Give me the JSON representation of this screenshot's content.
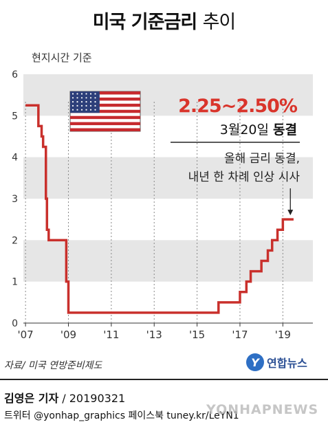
{
  "title_bold": "미국 기준금리",
  "title_thin": "추이",
  "subtitle": "현지시간 기준",
  "chart_data": {
    "type": "line",
    "title": "미국 기준금리 추이",
    "x_tick_labels": [
      "'07",
      "'09",
      "'11",
      "'13",
      "'15",
      "'17",
      "'19"
    ],
    "x_ticks": [
      2007,
      2009,
      2011,
      2013,
      2015,
      2017,
      2019
    ],
    "xlim": [
      2006.9,
      2020.4
    ],
    "ylim": [
      0,
      6
    ],
    "y_ticks": [
      0,
      1,
      2,
      3,
      4,
      5,
      6
    ],
    "grid": "alternating horizontal bands",
    "series": [
      {
        "color": "#c9302c",
        "x": [
          2007.0,
          2007.55,
          2007.6,
          2007.75,
          2007.82,
          2007.95,
          2008.0,
          2008.08,
          2008.15,
          2008.3,
          2008.9,
          2008.95,
          2009.0,
          2015.9,
          2016.0,
          2016.95,
          2017.0,
          2017.2,
          2017.3,
          2017.45,
          2017.5,
          2017.95,
          2018.0,
          2018.2,
          2018.3,
          2018.45,
          2018.5,
          2018.7,
          2018.75,
          2018.95,
          2019.0,
          2019.2,
          2019.5
        ],
        "y": [
          5.25,
          5.25,
          4.75,
          4.5,
          4.25,
          3.0,
          2.25,
          2.0,
          2.0,
          2.0,
          1.0,
          1.0,
          0.25,
          0.25,
          0.5,
          0.5,
          0.75,
          0.75,
          1.0,
          1.0,
          1.25,
          1.25,
          1.5,
          1.5,
          1.75,
          1.75,
          2.0,
          2.0,
          2.25,
          2.25,
          2.5,
          2.5,
          2.5
        ]
      }
    ],
    "annotation": {
      "rate": "2.25~2.50%",
      "date_prefix": "3월20일",
      "status": "동결",
      "note_line1": "올해 금리 동결,",
      "note_line2": "내년 한 차례 인상 시사"
    },
    "colors": {
      "line": "#c9302c",
      "band": "#e6e6e6",
      "rate_text": "#d9342b"
    }
  },
  "source": "자료/ 미국 연방준비제도",
  "logo": {
    "mark": "Y",
    "name": "연합뉴스"
  },
  "byline_author": "김영은 기자",
  "byline_date": " / 20190321",
  "sns": "트위터 @yonhap_graphics  페이스북 tuney.kr/LeYN1",
  "watermark": "YONHAPNEWS"
}
